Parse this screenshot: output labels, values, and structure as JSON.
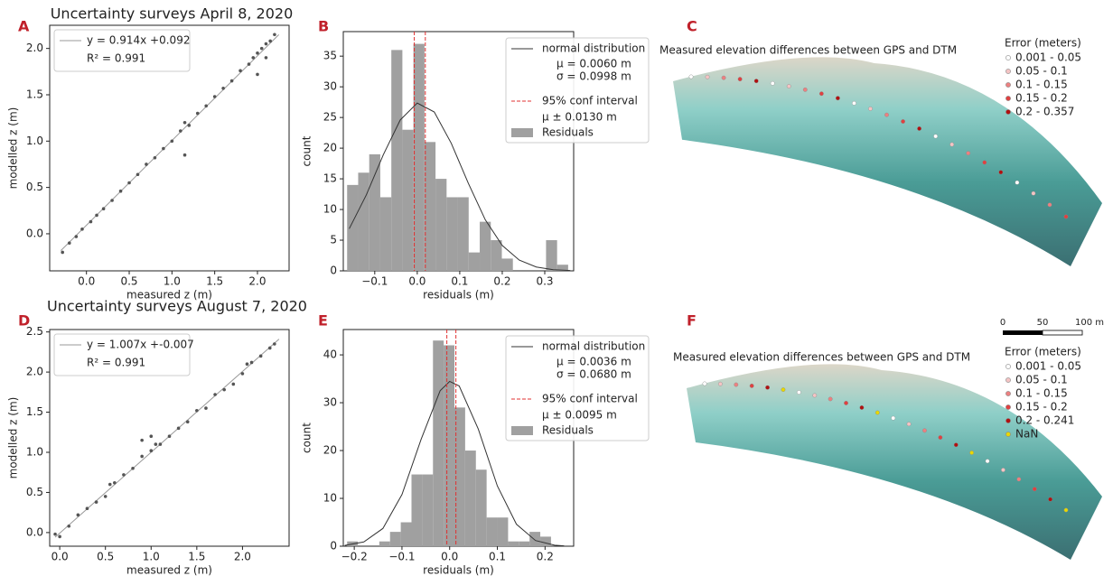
{
  "chart_data": [
    {
      "type": "scatter",
      "panel": "A",
      "title": "Uncertainty surveys April 8, 2020",
      "x_label": "measured z (m)",
      "y_label": "modelled z (m)",
      "x": [
        -0.28,
        -0.2,
        -0.12,
        -0.05,
        0.05,
        0.12,
        0.2,
        0.3,
        0.4,
        0.5,
        0.6,
        0.7,
        0.8,
        0.9,
        1.0,
        1.1,
        1.15,
        1.2,
        1.3,
        1.4,
        1.5,
        1.6,
        1.7,
        1.8,
        1.9,
        1.95,
        2.0,
        2.05,
        2.1,
        2.15,
        2.2,
        2.1,
        2.0,
        1.15
      ],
      "values": [
        -0.2,
        -0.1,
        -0.03,
        0.05,
        0.13,
        0.2,
        0.27,
        0.36,
        0.46,
        0.55,
        0.64,
        0.75,
        0.82,
        0.92,
        1.0,
        1.11,
        1.2,
        1.17,
        1.3,
        1.38,
        1.48,
        1.57,
        1.65,
        1.76,
        1.83,
        1.9,
        1.95,
        2.0,
        2.05,
        2.08,
        2.15,
        1.9,
        1.72,
        0.85
      ],
      "color": "#555555",
      "fit": {
        "name": "y = 0.914x +0.092",
        "x": [
          -0.3,
          2.25
        ],
        "values": [
          -0.182,
          2.149
        ],
        "color": "#999999"
      },
      "annotation": "R² = 0.991",
      "xlim": [
        -0.43,
        2.37
      ],
      "ylim": [
        -0.4,
        2.25
      ],
      "xticks": [
        {
          "value": 0,
          "label": "0.0"
        },
        0.5,
        {
          "value": 1,
          "label": "1.0"
        },
        1.5,
        {
          "value": 2,
          "label": "2.0"
        }
      ],
      "yticks": [
        {
          "value": 0,
          "label": "0.0"
        },
        0.5,
        {
          "value": 1,
          "label": "1.0"
        },
        1.5,
        {
          "value": 2,
          "label": "2.0"
        }
      ]
    },
    {
      "type": "histogram",
      "panel": "B",
      "x_label": "residuals (m)",
      "y_label": "count",
      "bins": [
        -0.165,
        -0.139,
        -0.113,
        -0.087,
        -0.061,
        -0.035,
        -0.009,
        0.017,
        0.043,
        0.069,
        0.095,
        0.121,
        0.147,
        0.173,
        0.199,
        0.225,
        0.251,
        0.277,
        0.303,
        0.329,
        0.355
      ],
      "values": [
        14,
        16,
        19,
        12,
        36,
        23,
        37,
        21,
        15,
        12,
        12,
        3,
        8,
        5,
        2,
        0,
        0,
        0,
        5,
        1
      ],
      "color": "#a0a0a0",
      "name": "Residuals",
      "curve": {
        "name": "normal distribution",
        "x": [
          -0.16,
          -0.12,
          -0.08,
          -0.04,
          0,
          0.04,
          0.08,
          0.12,
          0.16,
          0.2,
          0.24,
          0.28,
          0.32,
          0.36
        ],
        "values": [
          6.87,
          12.35,
          18.9,
          24.6,
          27.35,
          25.9,
          20.8,
          14.3,
          8.33,
          4.14,
          1.75,
          0.63,
          0.19,
          0.05
        ],
        "color": "#333333"
      },
      "stats": [
        "μ = 0.0060 m",
        "σ = 0.0998 m"
      ],
      "vlines": {
        "name": "95% conf interval",
        "x": [
          -0.007,
          0.019
        ],
        "note": "μ ± 0.0130 m",
        "color": "#e03030"
      },
      "xlim": [
        -0.174,
        0.368
      ],
      "ylim": [
        0,
        39
      ],
      "xticks": [
        {
          "value": -0.1,
          "label": "−0.1"
        },
        {
          "value": 0,
          "label": "0.0"
        },
        0.1,
        0.2,
        0.3
      ],
      "yticks": [
        0,
        5,
        10,
        15,
        20,
        25,
        30,
        35
      ]
    },
    {
      "type": "map",
      "panel": "C",
      "title": "Measured elevation differences between GPS and DTM",
      "legend_title": "Error (meters)",
      "legend": [
        {
          "label": "0.001 - 0.05",
          "color": "#ffffff"
        },
        {
          "label": "0.05 - 0.1",
          "color": "#f4c4c4"
        },
        {
          "label": "0.1 - 0.15",
          "color": "#ec8080"
        },
        {
          "label": "0.15 - 0.2",
          "color": "#e04040"
        },
        {
          "label": "0.2 - 0.357",
          "color": "#b01010"
        }
      ]
    },
    {
      "type": "scatter",
      "panel": "D",
      "title": "Uncertainty surveys August 7, 2020",
      "x_label": "measured z (m)",
      "y_label": "modelled z (m)",
      "x": [
        -0.05,
        0,
        0.1,
        0.2,
        0.3,
        0.4,
        0.5,
        0.55,
        0.6,
        0.7,
        0.8,
        0.9,
        1.0,
        1.05,
        1.1,
        1.2,
        1.3,
        1.4,
        1.5,
        1.6,
        1.7,
        1.8,
        1.9,
        2.0,
        2.05,
        2.1,
        2.2,
        2.3,
        2.35,
        0.9,
        1.0
      ],
      "values": [
        -0.02,
        -0.05,
        0.08,
        0.22,
        0.3,
        0.38,
        0.45,
        0.6,
        0.62,
        0.72,
        0.8,
        0.95,
        1.02,
        1.1,
        1.1,
        1.2,
        1.3,
        1.38,
        1.52,
        1.55,
        1.72,
        1.78,
        1.85,
        1.98,
        2.1,
        2.12,
        2.2,
        2.3,
        2.35,
        1.15,
        1.2
      ],
      "color": "#555555",
      "fit": {
        "name": "y = 1.007x +-0.007",
        "x": [
          -0.05,
          2.4
        ],
        "values": [
          -0.057,
          2.41
        ],
        "color": "#999999"
      },
      "annotation": "R² = 0.991",
      "xlim": [
        -0.11,
        2.51
      ],
      "ylim": [
        -0.17,
        2.53
      ],
      "xticks": [
        {
          "value": 0,
          "label": "0.0"
        },
        0.5,
        {
          "value": 1,
          "label": "1.0"
        },
        1.5,
        {
          "value": 2,
          "label": "2.0"
        }
      ],
      "yticks": [
        {
          "value": 0,
          "label": "0.0"
        },
        0.5,
        {
          "value": 1,
          "label": "1.0"
        },
        1.5,
        {
          "value": 2,
          "label": "2.0"
        },
        2.5
      ]
    },
    {
      "type": "histogram",
      "panel": "E",
      "x_label": "residuals (m)",
      "y_label": "count",
      "bins": [
        -0.215,
        -0.1925,
        -0.17,
        -0.1475,
        -0.125,
        -0.1025,
        -0.08,
        -0.0575,
        -0.035,
        -0.0125,
        0.01,
        0.0325,
        0.055,
        0.0775,
        0.1,
        0.1225,
        0.145,
        0.1675,
        0.19,
        0.2125,
        0.235
      ],
      "values": [
        1,
        0,
        0,
        1,
        3,
        5,
        15,
        15,
        43,
        42,
        29,
        20,
        16,
        6,
        6,
        1,
        1,
        3,
        2,
        0
      ],
      "color": "#a0a0a0",
      "name": "Residuals",
      "curve": {
        "name": "normal distribution",
        "x": [
          -0.22,
          -0.18,
          -0.14,
          -0.1,
          -0.06,
          -0.02,
          0,
          0.02,
          0.06,
          0.1,
          0.14,
          0.18,
          0.22,
          0.24
        ],
        "values": [
          0.16,
          0.9,
          3.71,
          10.8,
          22.3,
          32.5,
          34.45,
          33.5,
          24.5,
          12.6,
          4.6,
          1.19,
          0.22,
          0.08
        ],
        "color": "#333333"
      },
      "stats": [
        "μ = 0.0036 m",
        "σ = 0.0680 m"
      ],
      "vlines": {
        "name": "95% conf interval",
        "x": [
          -0.0059,
          0.0131
        ],
        "note": "μ ± 0.0095 m",
        "color": "#e03030"
      },
      "xlim": [
        -0.223,
        0.26
      ],
      "ylim": [
        0,
        45.3
      ],
      "xticks": [
        {
          "value": -0.2,
          "label": "−0.2"
        },
        {
          "value": -0.1,
          "label": "−0.1"
        },
        {
          "value": 0,
          "label": "0.0"
        },
        0.1,
        0.2
      ],
      "yticks": [
        0,
        10,
        20,
        30,
        40
      ]
    },
    {
      "type": "map",
      "panel": "F",
      "title": "Measured elevation differences between GPS and DTM",
      "legend_title": "Error (meters)",
      "legend": [
        {
          "label": "0.001 - 0.05",
          "color": "#ffffff"
        },
        {
          "label": "0.05 - 0.1",
          "color": "#f4c4c4"
        },
        {
          "label": "0.1 - 0.15",
          "color": "#ec8080"
        },
        {
          "label": "0.15 - 0.2",
          "color": "#e04040"
        },
        {
          "label": "0.2 - 0.241",
          "color": "#b01010"
        },
        {
          "label": "NaN",
          "color": "#e8d800"
        }
      ],
      "scale_labels": [
        "0",
        "50",
        "100 m"
      ]
    }
  ]
}
